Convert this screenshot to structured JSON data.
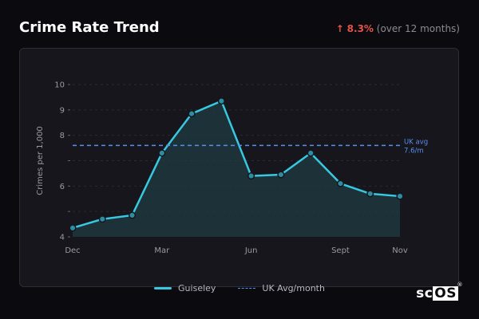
{
  "header": {
    "title": "Crime Rate Trend",
    "change_arrow": "↑",
    "change_value": "8.3%",
    "change_period": "(over 12 months)"
  },
  "chart_data": {
    "type": "line",
    "ylabel": "Crimes per 1,000",
    "ylim": [
      4,
      10
    ],
    "yticks": [
      4,
      5,
      6,
      7,
      8,
      9,
      10
    ],
    "ytick_labels": [
      "4",
      "",
      "6",
      "",
      "8",
      "9",
      "10"
    ],
    "xtick_labels": [
      "Dec",
      "Mar",
      "Jun",
      "Sept",
      "Nov"
    ],
    "xtick_positions": [
      0,
      3,
      6,
      9,
      11
    ],
    "grid": true,
    "series": [
      {
        "name": "Guiseley",
        "color": "#38c8e0",
        "values": [
          4.35,
          4.7,
          4.85,
          7.3,
          8.85,
          9.35,
          6.4,
          6.45,
          7.3,
          6.1,
          5.7,
          5.6
        ]
      }
    ],
    "reference_line": {
      "name": "UK Avg/month",
      "value": 7.6,
      "color": "#5a8ff0",
      "label_line1": "UK avg",
      "label_line2": "7.6/m"
    }
  },
  "legend": {
    "series_label": "Guiseley",
    "reference_label": "UK Avg/month"
  },
  "logo": {
    "text_plain": "sc",
    "text_boxed": "OS",
    "mark": "®"
  }
}
